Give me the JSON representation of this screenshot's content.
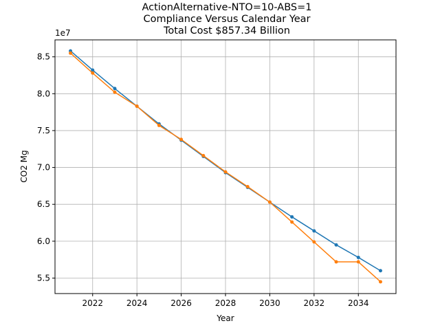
{
  "chart_data": {
    "type": "line",
    "title_lines": [
      "ActionAlternative-NTO=10-ABS=1",
      "Compliance Versus Calendar Year",
      "Total Cost $857.34 Billion"
    ],
    "xlabel": "Year",
    "ylabel": "CO2 Mg",
    "y_offset_label": "1e7",
    "x": [
      2021,
      2022,
      2023,
      2024,
      2025,
      2026,
      2027,
      2028,
      2029,
      2030,
      2031,
      2032,
      2033,
      2034,
      2035
    ],
    "xlim": [
      2020.3,
      2035.7
    ],
    "ylim": [
      52900000,
      87300000
    ],
    "x_ticks": [
      2022,
      2024,
      2026,
      2028,
      2030,
      2032,
      2034
    ],
    "x_tick_labels": [
      "2022",
      "2024",
      "2026",
      "2028",
      "2030",
      "2032",
      "2034"
    ],
    "y_ticks": [
      55000000,
      60000000,
      65000000,
      70000000,
      75000000,
      80000000,
      85000000
    ],
    "y_tick_labels": [
      "5.5",
      "6.0",
      "6.5",
      "7.0",
      "7.5",
      "8.0",
      "8.5"
    ],
    "grid": true,
    "series": [
      {
        "color": "#1f77b4",
        "values": [
          85800000,
          83200000,
          80700000,
          78300000,
          75900000,
          73700000,
          71500000,
          69300000,
          67300000,
          65300000,
          63300000,
          61400000,
          59500000,
          57800000,
          56000000
        ]
      },
      {
        "color": "#ff7f0e",
        "values": [
          85500000,
          82800000,
          80200000,
          78300000,
          75700000,
          73800000,
          71600000,
          69400000,
          67400000,
          65300000,
          62600000,
          59900000,
          57200000,
          57200000,
          54500000
        ]
      }
    ]
  }
}
